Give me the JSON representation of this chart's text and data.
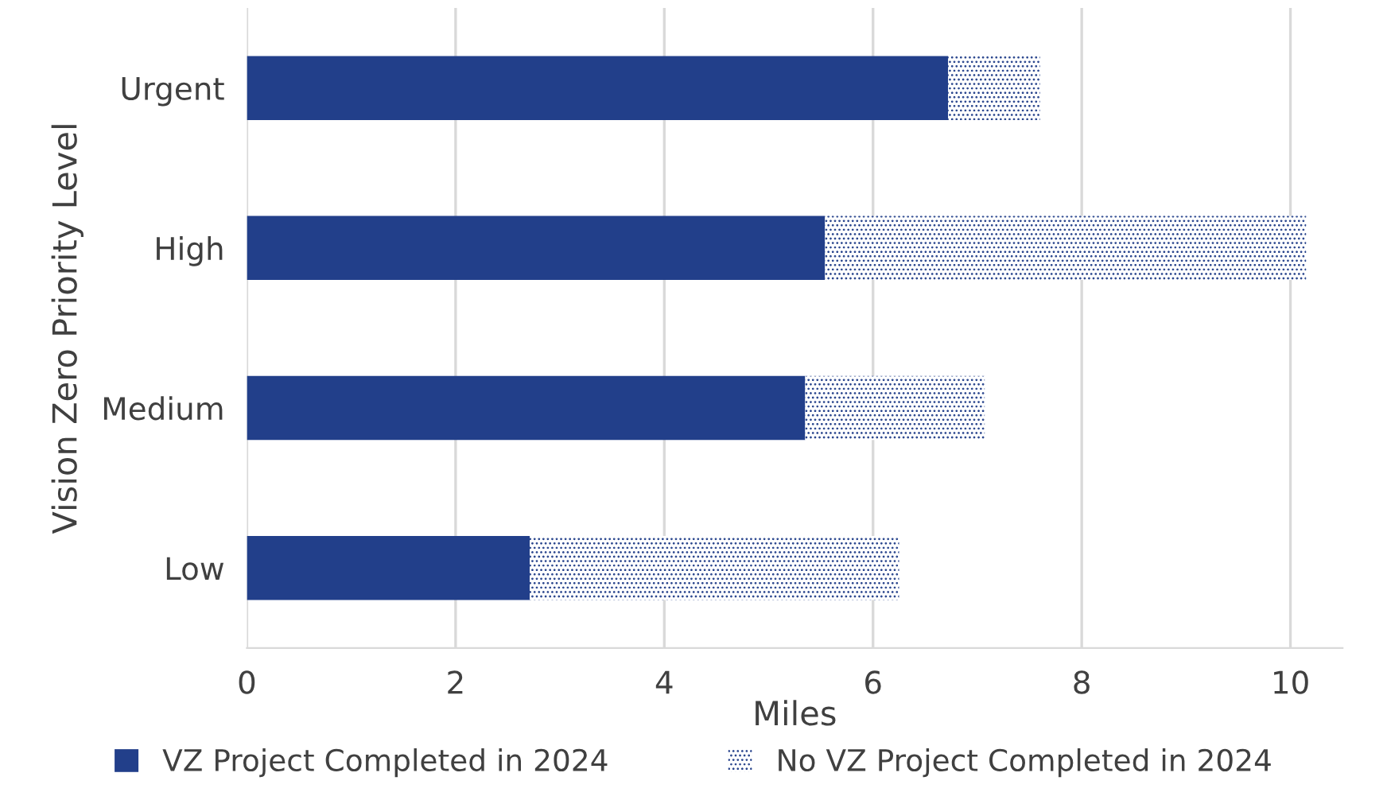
{
  "chart_data": {
    "type": "bar",
    "orientation": "horizontal",
    "stacked": true,
    "xlabel": "Miles",
    "ylabel": "Vision Zero Priority Level",
    "categories": [
      "Urgent",
      "High",
      "Medium",
      "Low"
    ],
    "series": [
      {
        "name": "VZ Project Completed in 2024",
        "color": "#223f8a",
        "values": [
          6.72,
          5.54,
          5.35,
          2.71
        ]
      },
      {
        "name": "No VZ Project Completed in 2024",
        "color": "#223f8a",
        "values": [
          0.88,
          4.61,
          1.72,
          3.54
        ]
      }
    ],
    "xlim": [
      0,
      10.5
    ],
    "xticks": [
      0,
      2,
      4,
      6,
      8,
      10
    ],
    "grid": "x",
    "legend": "bottom"
  }
}
